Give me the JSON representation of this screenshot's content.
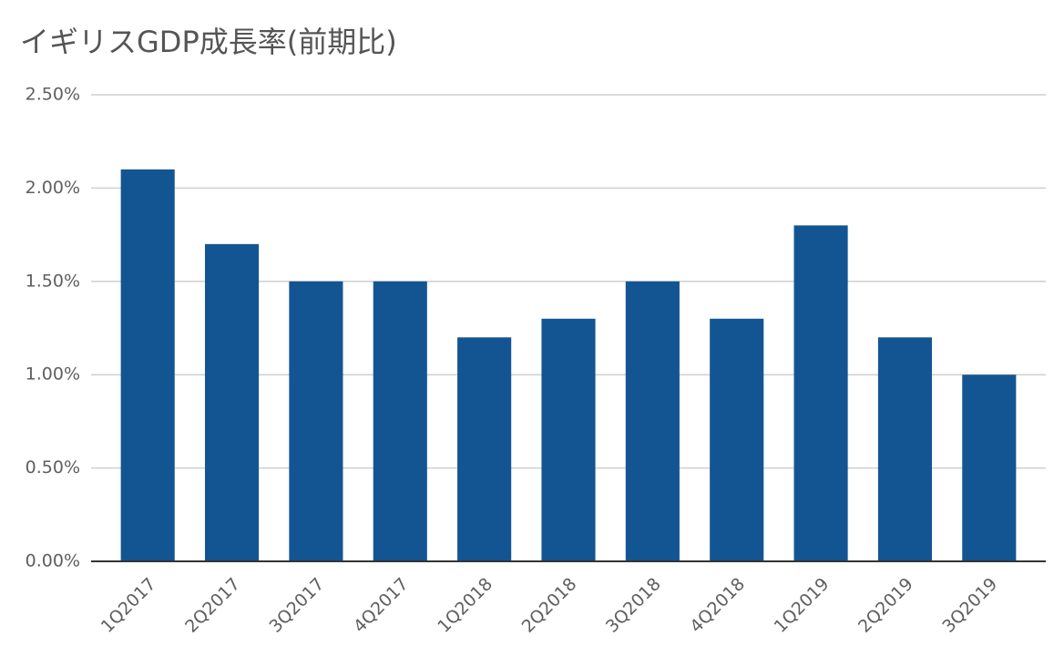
{
  "chart_data": {
    "type": "bar",
    "title": "イギリスGDP成長率(前期比)",
    "categories": [
      "1Q2017",
      "2Q2017",
      "3Q2017",
      "4Q2017",
      "1Q2018",
      "2Q2018",
      "3Q2018",
      "4Q2018",
      "1Q2019",
      "2Q2019",
      "3Q2019"
    ],
    "values": [
      2.1,
      1.7,
      1.5,
      1.5,
      1.2,
      1.3,
      1.5,
      1.3,
      1.8,
      1.2,
      1.0
    ],
    "color": "#135592",
    "ylim": [
      0,
      2.5
    ],
    "yticks": [
      {
        "value": 0,
        "label": "0.00%"
      },
      {
        "value": 0.5,
        "label": "0.50%"
      },
      {
        "value": 1,
        "label": "1.00%"
      },
      {
        "value": 1.5,
        "label": "1.50%"
      },
      {
        "value": 2,
        "label": "2.00%"
      },
      {
        "value": 2.5,
        "label": "2.50%"
      }
    ],
    "grid": true
  }
}
